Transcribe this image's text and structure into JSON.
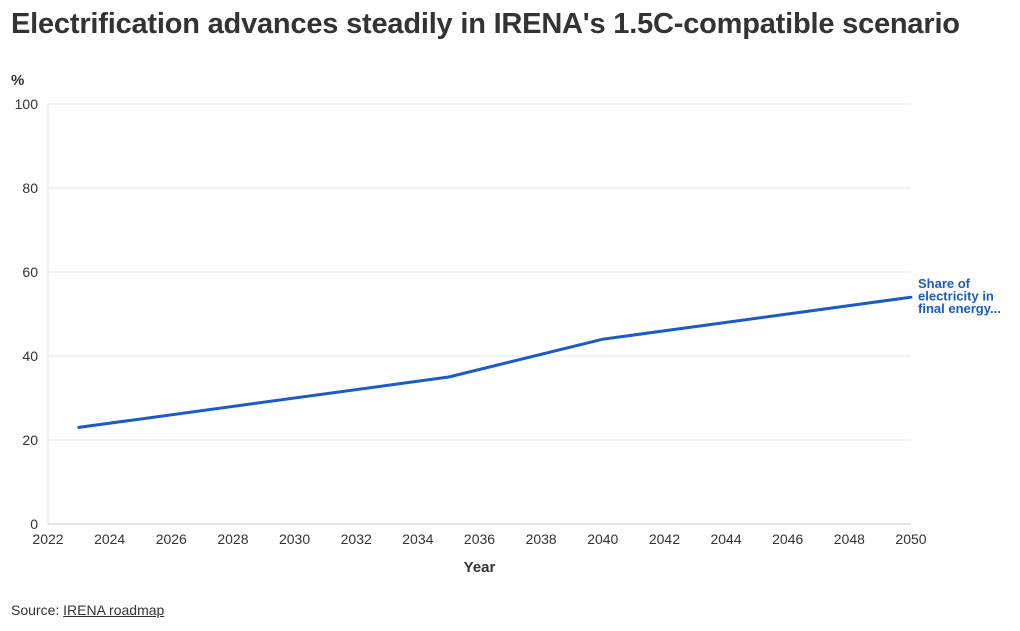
{
  "title": "Electrification advances steadily in IRENA's 1.5C-compatible scenario",
  "source": {
    "prefix": "Source: ",
    "link_text": "IRENA roadmap"
  },
  "colors": {
    "series": "#1a5bc4",
    "grid": "#e6e6e6",
    "text": "#333333",
    "axis": "#cccccc"
  },
  "chart_data": {
    "type": "line",
    "title": "Electrification advances steadily in IRENA's 1.5C-compatible scenario",
    "xlabel": "Year",
    "ylabel": "%",
    "xlim": [
      2022,
      2050
    ],
    "ylim": [
      0,
      100
    ],
    "xticks": [
      2022,
      2024,
      2026,
      2028,
      2030,
      2032,
      2034,
      2036,
      2038,
      2040,
      2042,
      2044,
      2046,
      2048,
      2050
    ],
    "yticks": [
      0,
      20,
      40,
      60,
      80,
      100
    ],
    "grid": true,
    "series": [
      {
        "name": "Share of electricity in final energy...",
        "label_lines": [
          "Share of",
          "electricity in",
          "final energy..."
        ],
        "points": [
          {
            "x": 2023,
            "y": 23
          },
          {
            "x": 2035,
            "y": 35
          },
          {
            "x": 2040,
            "y": 44
          },
          {
            "x": 2050,
            "y": 54
          }
        ]
      }
    ]
  }
}
